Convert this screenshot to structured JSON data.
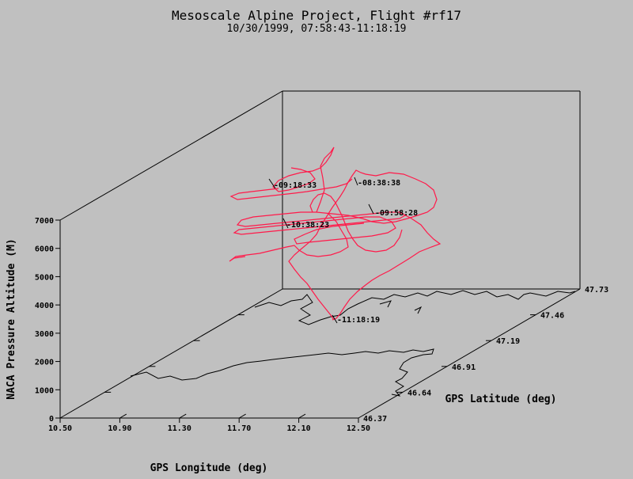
{
  "chart_data": {
    "type": "line",
    "projection": "3d-oblique",
    "title": "Mesoscale Alpine Project, Flight #rf17",
    "subtitle": "10/30/1999, 07:58:43-11:18:19",
    "xlabel": "GPS Longitude (deg)",
    "ylabel": "GPS Latitude (deg)",
    "zlabel": "NACA Pressure Altitude (M)",
    "xlim": [
      10.5,
      12.5
    ],
    "ylim": [
      46.37,
      47.73
    ],
    "zlim": [
      0,
      7000
    ],
    "x_ticks": [
      "10.50",
      "10.90",
      "11.30",
      "11.70",
      "12.10",
      "12.50"
    ],
    "y_ticks": [
      "46.37",
      "46.64",
      "46.91",
      "47.19",
      "47.46",
      "47.73"
    ],
    "z_ticks": [
      "0",
      "1000",
      "2000",
      "3000",
      "4000",
      "5000",
      "6000",
      "7000"
    ],
    "track_color": "#ff1a4a",
    "time_labels": [
      "-09:18:33",
      "-08:38:38",
      "-09:58:28",
      "-10:38:23",
      "-11:18:19"
    ]
  }
}
